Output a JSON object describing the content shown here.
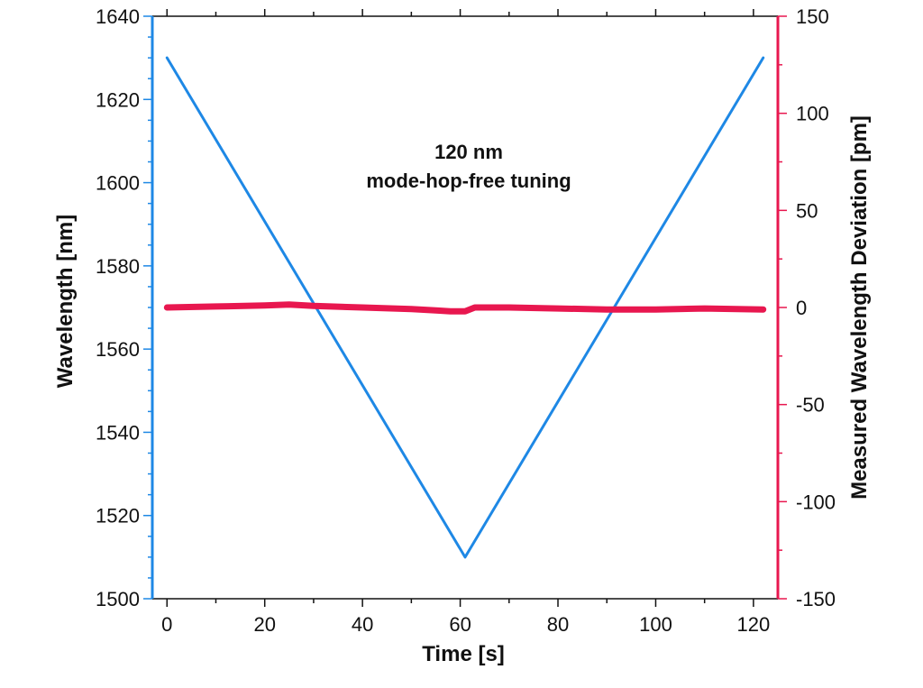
{
  "chart_data": {
    "type": "line",
    "title": "",
    "annotation": [
      "120 nm",
      "mode-hop-free tuning"
    ],
    "xlabel": "Time [s]",
    "ylabel_left": "Wavelength [nm]",
    "ylabel_right": "Measured Wavelength Deviation  [pm]",
    "xlim": [
      -3,
      125
    ],
    "ylim_left": [
      1500,
      1640
    ],
    "ylim_right": [
      -150,
      150
    ],
    "x_ticks": [
      0,
      20,
      40,
      60,
      80,
      100,
      120
    ],
    "y_ticks_left": [
      1500,
      1520,
      1540,
      1560,
      1580,
      1600,
      1620,
      1640
    ],
    "y_ticks_right": [
      -150,
      -100,
      -50,
      0,
      50,
      100,
      150
    ],
    "grid": false,
    "colors": {
      "left_axis": "#1e88e5",
      "right_axis": "#e8174f",
      "wavelength": "#1e88e5",
      "deviation": "#e8174f"
    },
    "series": [
      {
        "name": "Wavelength",
        "axis": "left",
        "color": "#1e88e5",
        "x": [
          0,
          61,
          122
        ],
        "y": [
          1630,
          1510,
          1630
        ]
      },
      {
        "name": "Measured Wavelength Deviation",
        "axis": "right",
        "color": "#e8174f",
        "x": [
          0,
          10,
          20,
          25,
          30,
          40,
          50,
          55,
          58,
          61,
          63,
          70,
          80,
          90,
          100,
          110,
          122
        ],
        "y": [
          0,
          0.5,
          1,
          1.5,
          0.8,
          0,
          -0.8,
          -1.5,
          -2,
          -2,
          0,
          0,
          -0.5,
          -1,
          -1,
          -0.5,
          -1
        ]
      }
    ]
  }
}
